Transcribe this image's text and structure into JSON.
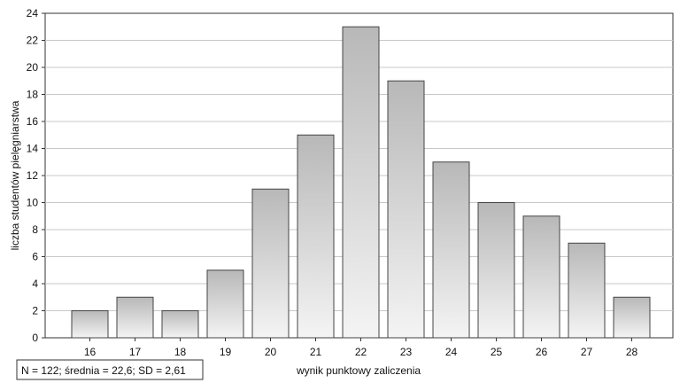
{
  "chart_data": {
    "type": "bar",
    "categories": [
      "16",
      "17",
      "18",
      "19",
      "20",
      "21",
      "22",
      "23",
      "24",
      "25",
      "26",
      "27",
      "28"
    ],
    "values": [
      2,
      3,
      2,
      5,
      11,
      15,
      23,
      19,
      13,
      10,
      9,
      7,
      3
    ],
    "title": "",
    "xlabel": "wynik punktowy zaliczenia",
    "ylabel": "liczba studentów pielęgniarstwa",
    "ylim": [
      0,
      24
    ],
    "yticks": [
      0,
      2,
      4,
      6,
      8,
      10,
      12,
      14,
      16,
      18,
      20,
      22,
      24
    ],
    "grid": true,
    "legend": "none",
    "annotation": "N = 122; średnia = 22,6; SD = 2,61",
    "colors": {
      "bar_fill_light": "#f4f4f4",
      "bar_fill_dark": "#b8b8b8",
      "bar_stroke": "#444444",
      "grid": "#c8c8c8",
      "axis": "#333333"
    }
  }
}
